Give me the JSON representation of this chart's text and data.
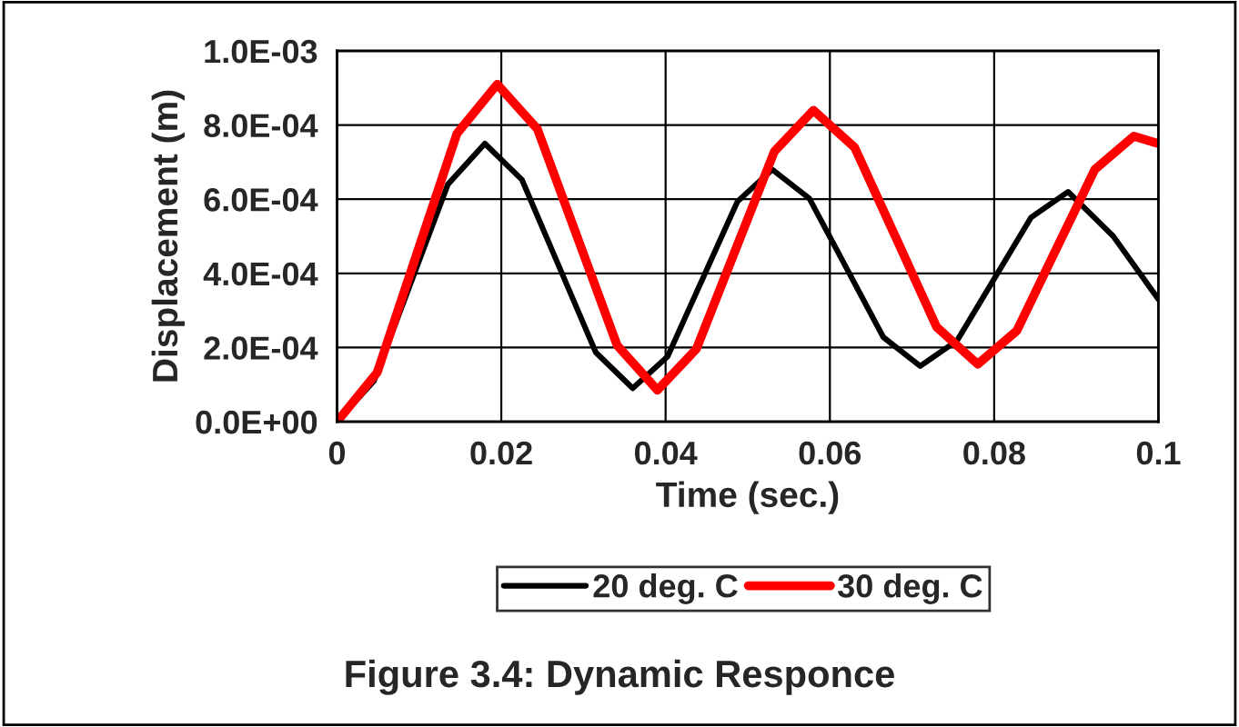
{
  "chart_data": {
    "type": "line",
    "title": "Figure 3.4: Dynamic Responce",
    "xlabel": "Time (sec.)",
    "ylabel": "Displacement (m)",
    "xlim": [
      0,
      0.1
    ],
    "xticks": [
      0,
      0.02,
      0.04,
      0.06,
      0.08,
      0.1
    ],
    "ylim": [
      0,
      0.001
    ],
    "yticks": [
      {
        "value": 0,
        "label": "0.0E+00"
      },
      {
        "value": 0.0002,
        "label": "2.0E-04"
      },
      {
        "value": 0.0004,
        "label": "4.0E-04"
      },
      {
        "value": 0.0006,
        "label": "6.0E-04"
      },
      {
        "value": 0.0008,
        "label": "8.0E-04"
      },
      {
        "value": 0.001,
        "label": "1.0E-03"
      }
    ],
    "grid": true,
    "legend": "bottom",
    "marker": "none",
    "line_style": "solid",
    "series": [
      {
        "name": "20 deg. C",
        "color": "#000000",
        "x": [
          0,
          0.0045,
          0.009,
          0.0135,
          0.018,
          0.0225,
          0.027,
          0.0315,
          0.036,
          0.04025,
          0.0445,
          0.04875,
          0.053,
          0.0575,
          0.062,
          0.0665,
          0.071,
          0.0755,
          0.08,
          0.0845,
          0.089,
          0.0945,
          0.1
        ],
        "values": [
          0,
          0.00011,
          0.000375,
          0.00064,
          0.00075,
          0.000653,
          0.00042,
          0.000187,
          9e-05,
          0.000176,
          0.000385,
          0.000594,
          0.00068,
          0.000602,
          0.000415,
          0.000228,
          0.00015,
          0.000219,
          0.000385,
          0.000551,
          0.00062,
          0.0005,
          0.00033
        ]
      },
      {
        "name": "30 deg. C",
        "color": "#ff0000",
        "x": [
          0,
          0.0049,
          0.00975,
          0.0146,
          0.0195,
          0.0244,
          0.02925,
          0.0341,
          0.039,
          0.04375,
          0.0485,
          0.05325,
          0.058,
          0.063,
          0.068,
          0.073,
          0.078,
          0.08275,
          0.0875,
          0.09225,
          0.097,
          0.1
        ],
        "values": [
          0,
          0.000133,
          0.000455,
          0.000777,
          0.00091,
          0.000789,
          0.000498,
          0.000206,
          8.5e-05,
          0.000196,
          0.000463,
          0.000729,
          0.00084,
          0.00074,
          0.000498,
          0.000255,
          0.000155,
          0.000245,
          0.000463,
          0.00068,
          0.00077,
          0.00075
        ]
      }
    ]
  }
}
